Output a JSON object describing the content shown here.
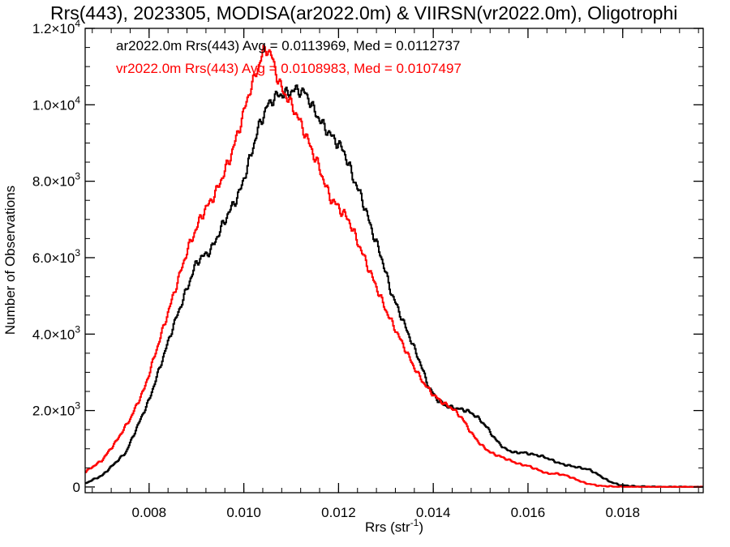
{
  "title": "Rrs(443), 2023305, MODISA(ar2022.0m) & VIIRSN(vr2022.0m), Oligotrophi",
  "chart_data": {
    "type": "line",
    "title": "Rrs(443), 2023305, MODISA(ar2022.0m) & VIIRSN(vr2022.0m), Oligotrophi",
    "xlabel": "Rrs (str",
    "xlabel_sup": "-1",
    "xlabel_end": ")",
    "ylabel": "Number of Observations",
    "xlim": [
      0.00665,
      0.0197
    ],
    "ylim": [
      -150,
      12000
    ],
    "grid": false,
    "legend_placement": "top-left",
    "x_ticks": [
      {
        "value": 0.008,
        "label": "0.008"
      },
      {
        "value": 0.01,
        "label": "0.010"
      },
      {
        "value": 0.012,
        "label": "0.012"
      },
      {
        "value": 0.014,
        "label": "0.014"
      },
      {
        "value": 0.016,
        "label": "0.016"
      },
      {
        "value": 0.018,
        "label": "0.018"
      }
    ],
    "y_ticks": [
      {
        "value": 0,
        "mant": "0",
        "exp": ""
      },
      {
        "value": 2000,
        "mant": "2.0×10",
        "exp": "3"
      },
      {
        "value": 4000,
        "mant": "4.0×10",
        "exp": "3"
      },
      {
        "value": 6000,
        "mant": "6.0×10",
        "exp": "3"
      },
      {
        "value": 8000,
        "mant": "8.0×10",
        "exp": "3"
      },
      {
        "value": 10000,
        "mant": "1.0×10",
        "exp": "4"
      },
      {
        "value": 12000,
        "mant": "1.2×10",
        "exp": "4"
      }
    ],
    "series": [
      {
        "name": "ar2022.0m Rrs(443) Avg = 0.0113969, Med = 0.0112737",
        "color": "#000000",
        "x": [
          0.00665,
          0.007,
          0.0075,
          0.008,
          0.0085,
          0.009,
          0.0093,
          0.0096,
          0.0099,
          0.0101,
          0.0103,
          0.0105,
          0.0107,
          0.0109,
          0.0111,
          0.0113,
          0.0115,
          0.0117,
          0.0119,
          0.0121,
          0.0123,
          0.0125,
          0.0127,
          0.0129,
          0.0131,
          0.0133,
          0.0135,
          0.0137,
          0.0139,
          0.0141,
          0.0143,
          0.0145,
          0.0147,
          0.0149,
          0.0151,
          0.0153,
          0.0155,
          0.0157,
          0.0159,
          0.0161,
          0.0163,
          0.0165,
          0.0167,
          0.0169,
          0.0171,
          0.0173,
          0.0175,
          0.0177,
          0.0179,
          0.0181,
          0.0183,
          0.0185,
          0.0187,
          0.019,
          0.0197
        ],
        "values": [
          100,
          300,
          900,
          2300,
          4200,
          5900,
          6200,
          7000,
          7700,
          8500,
          9400,
          10000,
          10250,
          10300,
          10400,
          10300,
          9800,
          9400,
          9100,
          8800,
          8100,
          7500,
          6700,
          6000,
          5100,
          4500,
          3900,
          3300,
          2600,
          2250,
          2100,
          2050,
          2000,
          1850,
          1600,
          1250,
          1000,
          900,
          900,
          850,
          800,
          700,
          600,
          550,
          500,
          450,
          300,
          150,
          60,
          30,
          15,
          10,
          5,
          0,
          0
        ]
      },
      {
        "name": "vr2022.0m Rrs(443) Avg = 0.0108983, Med = 0.0107497",
        "color": "#ff0000",
        "x": [
          0.00665,
          0.007,
          0.0073,
          0.0076,
          0.0079,
          0.0082,
          0.0085,
          0.0088,
          0.0091,
          0.0094,
          0.0097,
          0.0099,
          0.0101,
          0.0103,
          0.0104,
          0.0105,
          0.0106,
          0.0107,
          0.0108,
          0.011,
          0.0112,
          0.0114,
          0.0116,
          0.0118,
          0.012,
          0.0122,
          0.0124,
          0.0126,
          0.0128,
          0.013,
          0.0132,
          0.0134,
          0.0136,
          0.0138,
          0.014,
          0.0142,
          0.0144,
          0.0146,
          0.0148,
          0.015,
          0.0152,
          0.0154,
          0.0156,
          0.0158,
          0.016,
          0.0162,
          0.0164,
          0.0166,
          0.0168,
          0.017,
          0.0172,
          0.0175,
          0.018,
          0.0197
        ],
        "values": [
          400,
          700,
          1200,
          1800,
          2600,
          3800,
          5000,
          6200,
          7100,
          7700,
          8600,
          9400,
          10300,
          11000,
          11400,
          11450,
          11200,
          10700,
          10400,
          10000,
          9500,
          8900,
          8300,
          7600,
          7300,
          7000,
          6400,
          5800,
          5200,
          4600,
          4100,
          3600,
          3100,
          2700,
          2400,
          2200,
          2050,
          1800,
          1400,
          1100,
          900,
          800,
          700,
          600,
          550,
          450,
          350,
          350,
          300,
          200,
          100,
          30,
          0,
          0
        ]
      }
    ]
  }
}
